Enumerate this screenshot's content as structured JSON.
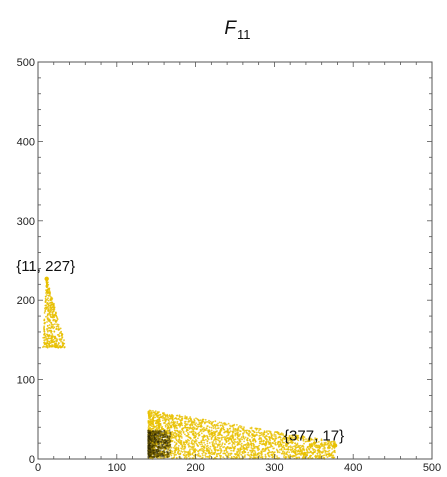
{
  "chart_data": {
    "type": "scatter",
    "title": "F",
    "title_subscript": "11",
    "xlim": [
      0,
      500
    ],
    "ylim": [
      0,
      500
    ],
    "x_ticks": [
      0,
      100,
      200,
      300,
      400,
      500
    ],
    "y_ticks": [
      0,
      100,
      200,
      300,
      400,
      500
    ],
    "point_color": "#E8C000",
    "dense_color": "#2a2400",
    "frame": "box",
    "grid": false,
    "clusters": [
      {
        "shape": "wedge",
        "apex": [
          11,
          227
        ],
        "base_y": 140,
        "base_x_range": [
          5,
          35
        ]
      },
      {
        "shape": "wedge",
        "apex": [
          377,
          17
        ],
        "base_x": 140,
        "base_y_range": [
          0,
          62
        ],
        "dense_core": [
          140,
          20
        ]
      }
    ],
    "annotations": [
      {
        "text": "{11, 227}",
        "x": 11,
        "y": 227
      },
      {
        "text": "{377, 17}",
        "x": 377,
        "y": 17
      }
    ]
  }
}
